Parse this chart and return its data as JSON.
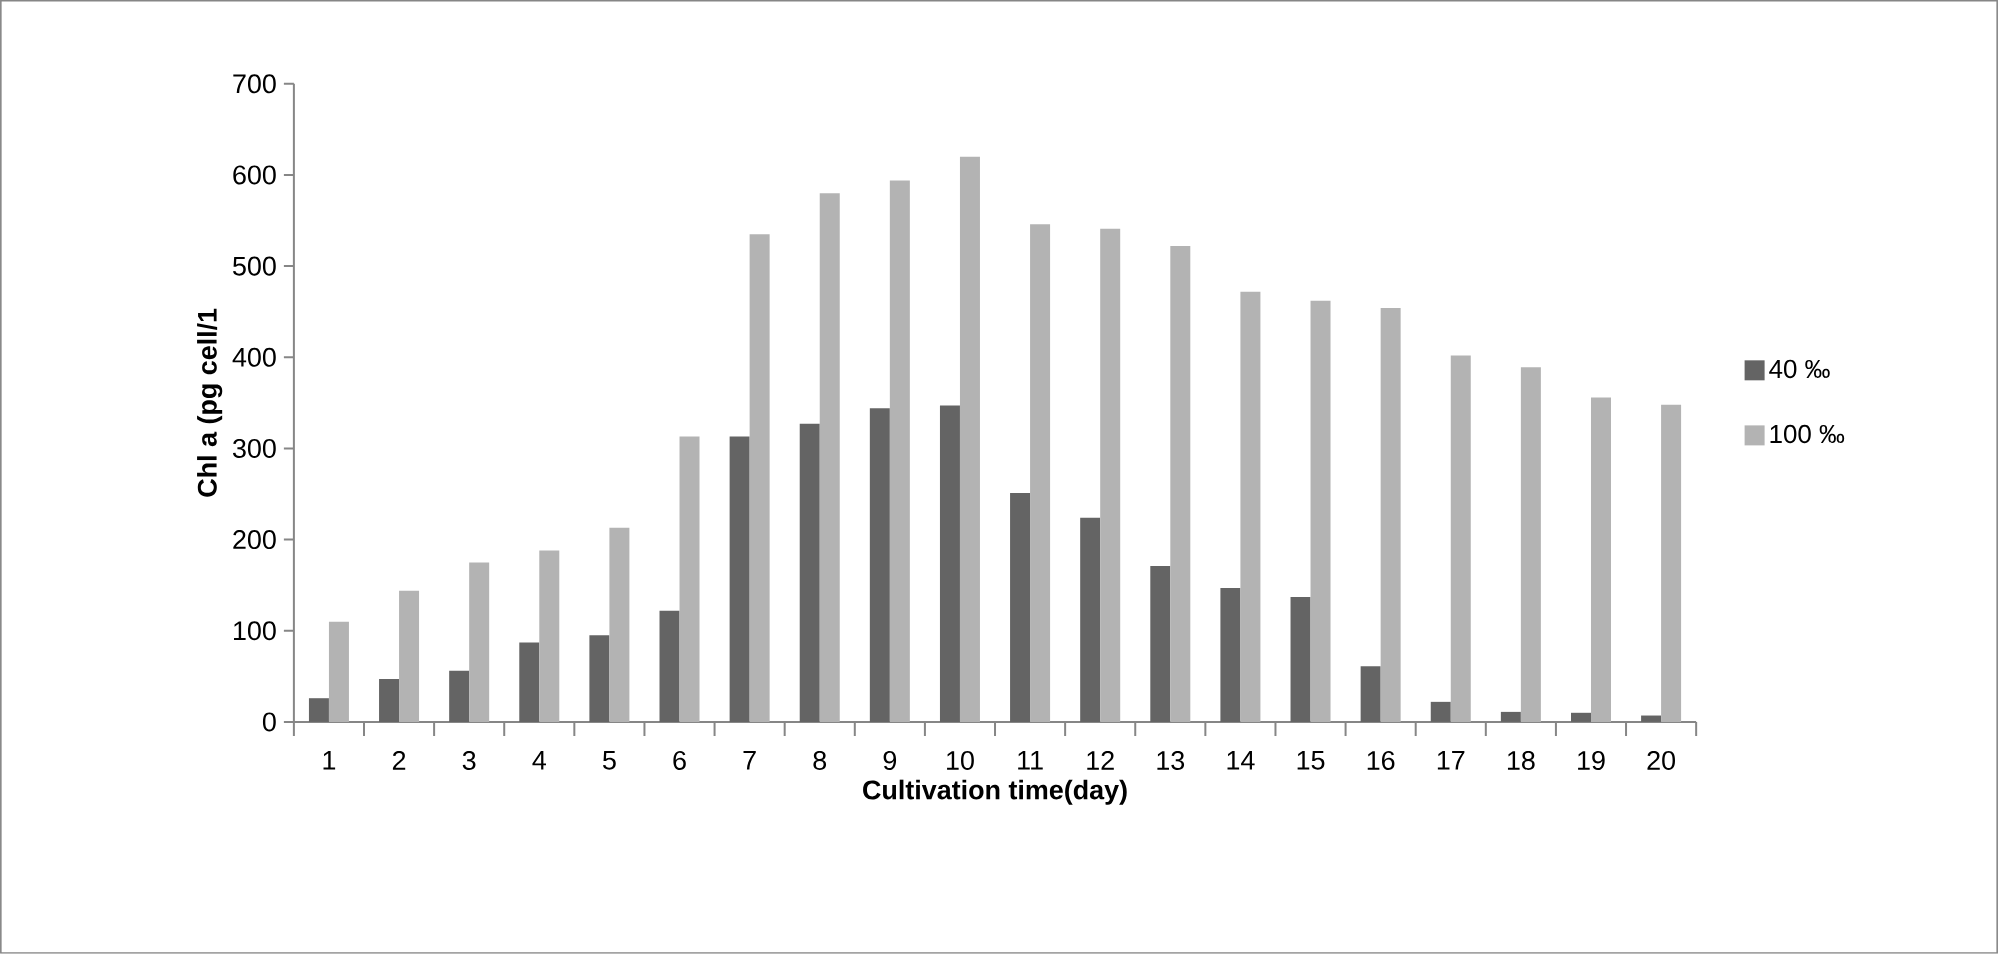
{
  "chart_data": {
    "type": "bar",
    "xlabel": "Cultivation time(day)",
    "ylabel": "Chl a (pg cell/1",
    "categories": [
      "1",
      "2",
      "3",
      "4",
      "5",
      "6",
      "7",
      "8",
      "9",
      "10",
      "11",
      "12",
      "13",
      "14",
      "15",
      "16",
      "17",
      "18",
      "19",
      "20"
    ],
    "series": [
      {
        "name": "40 ‰",
        "color": "#646464",
        "values": [
          26,
          47,
          56,
          87,
          95,
          122,
          313,
          327,
          344,
          347,
          251,
          224,
          171,
          147,
          137,
          61,
          22,
          11,
          10,
          7
        ]
      },
      {
        "name": "100 ‰",
        "color": "#b3b3b3",
        "values": [
          110,
          144,
          175,
          188,
          213,
          313,
          535,
          580,
          594,
          620,
          546,
          541,
          522,
          472,
          462,
          454,
          402,
          389,
          356,
          348
        ]
      }
    ],
    "ylim": [
      0,
      700
    ],
    "yticks": [
      0,
      100,
      200,
      300,
      400,
      500,
      600,
      700
    ],
    "grid": false,
    "legend": "right"
  }
}
